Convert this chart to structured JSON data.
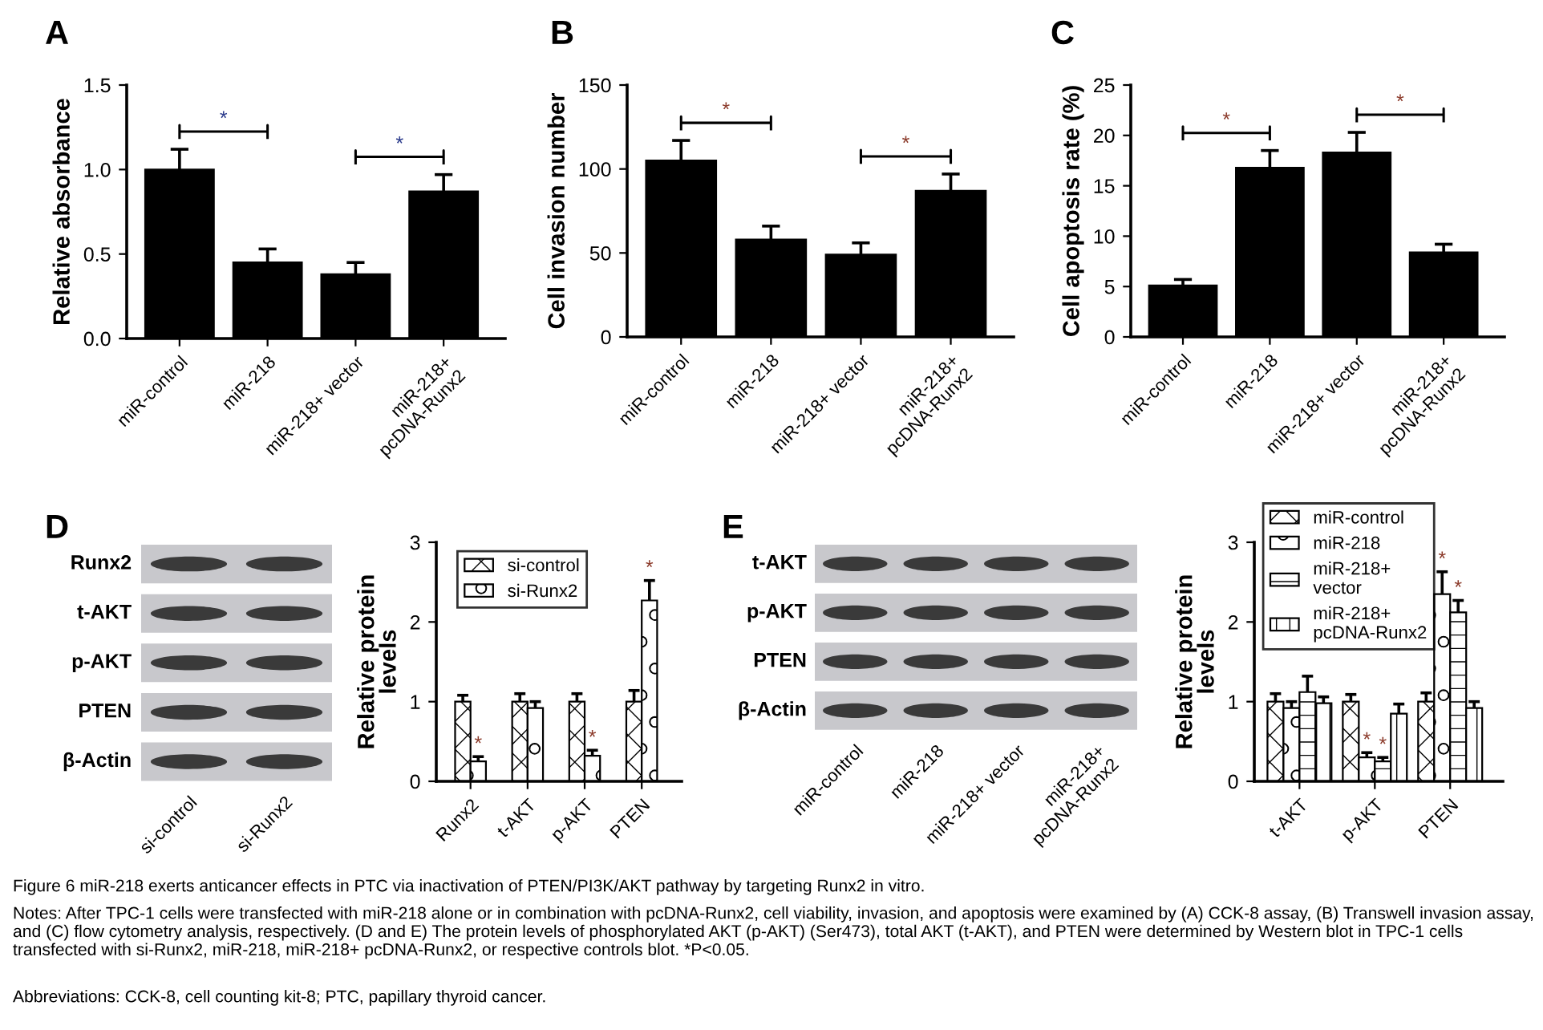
{
  "chart_data": [
    {
      "type": "bar",
      "title": "A",
      "ylabel": "Relative absorbance",
      "categories": [
        "miR-control",
        "miR-218",
        "miR-218+ vector",
        "miR-218+\npcDNA-Runx2"
      ],
      "values": [
        1.0,
        0.45,
        0.38,
        0.87
      ],
      "errors": [
        0.12,
        0.08,
        0.07,
        0.1
      ],
      "color": "#000000",
      "ylim": [
        0,
        1.5
      ],
      "yticks": [
        {
          "value": 0,
          "label": "0.0"
        },
        {
          "value": 0.5,
          "label": "0.5"
        },
        {
          "value": 1.0,
          "label": "1.0"
        },
        {
          "value": 1.5,
          "label": "1.5"
        }
      ],
      "annotations": [
        "*",
        "*"
      ]
    },
    {
      "type": "bar",
      "title": "B",
      "ylabel": "Cell invasion number",
      "categories": [
        "miR-control",
        "miR-218",
        "miR-218+ vector",
        "miR-218+\npcDNA-Runx2"
      ],
      "values": [
        105,
        58,
        49,
        87
      ],
      "errors": [
        12,
        8,
        7,
        10
      ],
      "color": "#000000",
      "ylim": [
        0,
        150
      ],
      "yticks": [
        0,
        50,
        100,
        150
      ],
      "annotations": [
        "*",
        "*"
      ]
    },
    {
      "type": "bar",
      "title": "C",
      "ylabel": "Cell apoptosis rate (%)",
      "categories": [
        "miR-control",
        "miR-218",
        "miR-218+ vector",
        "miR-218+\npcDNA-Runx2"
      ],
      "values": [
        5.1,
        16.8,
        18.3,
        8.4
      ],
      "errors": [
        0.6,
        1.7,
        2.0,
        0.8
      ],
      "color": "#000000",
      "ylim": [
        0,
        25
      ],
      "yticks": [
        0,
        5,
        10,
        15,
        20,
        25
      ],
      "annotations": [
        "*",
        "*"
      ]
    },
    {
      "type": "other",
      "title": "D",
      "categories": [
        "si-control",
        "si-Runx2"
      ],
      "y_categories": [
        "Runx2",
        "t-AKT",
        "p-AKT",
        "PTEN",
        "β-Actin"
      ]
    },
    {
      "type": "bar",
      "ylabel": "Relative protein\nlevels",
      "categories": [
        "Runx2",
        "t-AKT",
        "p-AKT",
        "PTEN"
      ],
      "ylim": [
        0,
        3
      ],
      "yticks": [
        0,
        1,
        2,
        3
      ],
      "legend": "top left",
      "series": [
        {
          "name": "si-control",
          "color": "#000000",
          "values": [
            1.0,
            1.0,
            1.0,
            1.0
          ],
          "errors": [
            0.08,
            0.1,
            0.1,
            0.14
          ]
        },
        {
          "name": "si-Runx2",
          "color": "#000000",
          "values": [
            0.25,
            0.92,
            0.32,
            2.27
          ],
          "errors": [
            0.06,
            0.08,
            0.07,
            0.25
          ],
          "value_labels": [
            "*",
            null,
            "*",
            "*"
          ]
        }
      ]
    },
    {
      "type": "other",
      "title": "E",
      "categories": [
        "miR-control",
        "miR-218",
        "miR-218+ vector",
        "miR-218+\npcDNA-Runx2"
      ],
      "y_categories": [
        "t-AKT",
        "p-AKT",
        "PTEN",
        "β-Actin"
      ]
    },
    {
      "type": "bar",
      "ylabel": "Relative protein\nlevels",
      "categories": [
        "t-AKT",
        "p-AKT",
        "PTEN"
      ],
      "ylim": [
        0,
        3
      ],
      "yticks": [
        0,
        1,
        2,
        3
      ],
      "legend": "top left",
      "series": [
        {
          "name": "miR-control",
          "color": "#000000",
          "values": [
            1.0,
            1.0,
            1.0
          ],
          "errors": [
            0.1,
            0.09,
            0.11
          ]
        },
        {
          "name": "miR-218",
          "color": "#000000",
          "values": [
            0.92,
            0.3,
            2.35
          ],
          "errors": [
            0.08,
            0.06,
            0.28
          ],
          "value_labels": [
            null,
            "*",
            "*"
          ]
        },
        {
          "name": "miR-218+\nvector",
          "color": "#000000",
          "values": [
            1.12,
            0.25,
            2.12
          ],
          "errors": [
            0.2,
            0.05,
            0.15
          ],
          "value_labels": [
            null,
            "*",
            "*"
          ]
        },
        {
          "name": "miR-218+\npcDNA-Runx2",
          "color": "#000000",
          "values": [
            0.98,
            0.85,
            0.92
          ],
          "errors": [
            0.08,
            0.12,
            0.08
          ]
        }
      ],
      "annotations": [
        "Figure 6 miR-218 exerts anticancer effects in PTC via inactivation of PTEN/PI3K/AKT pathway by targeting Runx2 in vitro.",
        "Notes: After TPC-1 cells were transfected with miR-218 alone or in combination with pcDNA-Runx2, cell viability, invasion, and apoptosis were examined by (A) CCK-8 assay, (B) Transwell invasion assay, and (C) flow cytometry analysis, respectively. (D and E) The protein levels of phosphorylated AKT (p-AKT) (Ser473), total AKT (t-AKT), and PTEN were determined by Western blot in TPC-1 cells transfected with si-Runx2, miR-218, miR-218+ pcDNA-Runx2, or respective controls blot. *P<0.05.",
        "Abbreviations: CCK-8, cell counting kit-8; PTC, papillary thyroid cancer."
      ]
    }
  ]
}
